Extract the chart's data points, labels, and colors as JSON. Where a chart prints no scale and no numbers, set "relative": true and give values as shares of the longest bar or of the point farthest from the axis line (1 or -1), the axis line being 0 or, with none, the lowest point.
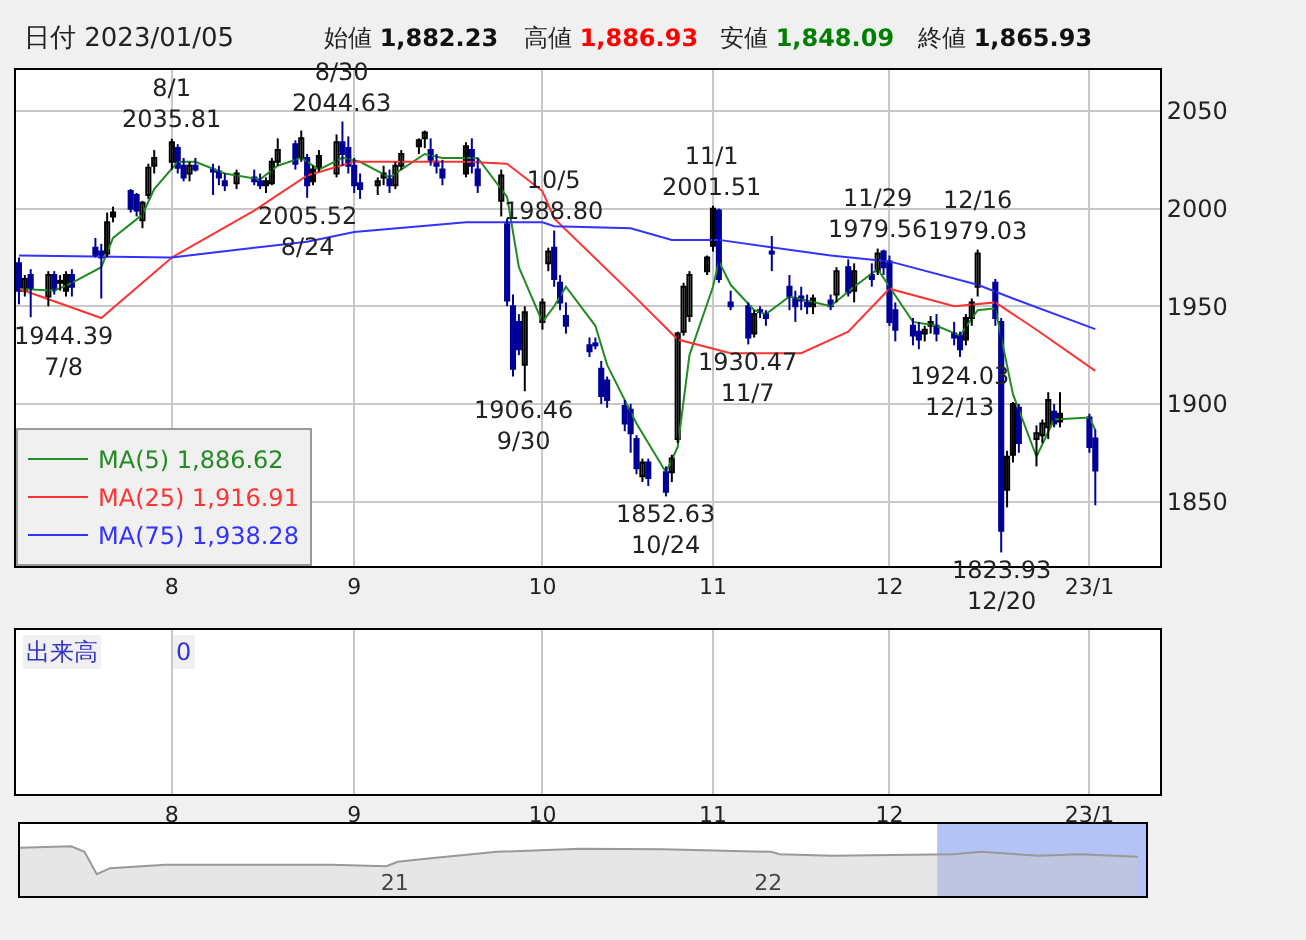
{
  "chart_data": [
    {
      "type": "candlestick",
      "annotations": [
        "日付 2023/01/05",
        "始値 1,882.23",
        "高値 1,886.93",
        "安値 1,848.09",
        "終値 1,865.93",
        "出来高",
        "0",
        {
          "text": "1944.39\n7/8",
          "x": "2022-07-08",
          "y": 1944.39
        },
        {
          "text": "8/1\n2035.81",
          "x": "2022-08-01",
          "y": 2035.81
        },
        {
          "text": "2005.52\n8/24",
          "x": "2022-08-24",
          "y": 2005.52
        },
        {
          "text": "8/30\n2044.63",
          "x": "2022-08-30",
          "y": 2044.63
        },
        {
          "text": "1906.46\n9/30",
          "x": "2022-09-30",
          "y": 1906.46
        },
        {
          "text": "10/5\n1988.80",
          "x": "2022-10-05",
          "y": 1988.8
        },
        {
          "text": "1852.63\n10/24",
          "x": "2022-10-24",
          "y": 1852.63
        },
        {
          "text": "11/1\n2001.51",
          "x": "2022-11-01",
          "y": 2001.51
        },
        {
          "text": "1930.47\n11/7",
          "x": "2022-11-07",
          "y": 1930.47
        },
        {
          "text": "11/29\n1979.56",
          "x": "2022-11-29",
          "y": 1979.56
        },
        {
          "text": "1924.03\n12/13",
          "x": "2022-12-13",
          "y": 1924.03
        },
        {
          "text": "12/16\n1979.03",
          "x": "2022-12-16",
          "y": 1979.03
        },
        {
          "text": "1823.93\n12/20",
          "x": "2022-12-20",
          "y": 1823.93
        }
      ],
      "x": [
        "2022-07-06",
        "2022-07-07",
        "2022-07-08",
        "2022-07-11",
        "2022-07-12",
        "2022-07-13",
        "2022-07-14",
        "2022-07-15",
        "2022-07-19",
        "2022-07-20",
        "2022-07-21",
        "2022-07-22",
        "2022-07-25",
        "2022-07-26",
        "2022-07-27",
        "2022-07-28",
        "2022-07-29",
        "2022-08-01",
        "2022-08-02",
        "2022-08-03",
        "2022-08-04",
        "2022-08-05",
        "2022-08-08",
        "2022-08-09",
        "2022-08-10",
        "2022-08-12",
        "2022-08-15",
        "2022-08-16",
        "2022-08-17",
        "2022-08-18",
        "2022-08-19",
        "2022-08-22",
        "2022-08-23",
        "2022-08-24",
        "2022-08-25",
        "2022-08-26",
        "2022-08-29",
        "2022-08-30",
        "2022-08-31",
        "2022-09-01",
        "2022-09-02",
        "2022-09-05",
        "2022-09-06",
        "2022-09-07",
        "2022-09-08",
        "2022-09-09",
        "2022-09-12",
        "2022-09-13",
        "2022-09-14",
        "2022-09-15",
        "2022-09-16",
        "2022-09-20",
        "2022-09-21",
        "2022-09-22",
        "2022-09-26",
        "2022-09-27",
        "2022-09-28",
        "2022-09-29",
        "2022-09-30",
        "2022-10-03",
        "2022-10-04",
        "2022-10-05",
        "2022-10-06",
        "2022-10-07",
        "2022-10-11",
        "2022-10-12",
        "2022-10-13",
        "2022-10-14",
        "2022-10-17",
        "2022-10-18",
        "2022-10-19",
        "2022-10-20",
        "2022-10-21",
        "2022-10-24",
        "2022-10-25",
        "2022-10-26",
        "2022-10-27",
        "2022-10-28",
        "2022-10-31",
        "2022-11-01",
        "2022-11-02",
        "2022-11-04",
        "2022-11-07",
        "2022-11-08",
        "2022-11-09",
        "2022-11-10",
        "2022-11-11",
        "2022-11-14",
        "2022-11-15",
        "2022-11-16",
        "2022-11-17",
        "2022-11-18",
        "2022-11-21",
        "2022-11-22",
        "2022-11-24",
        "2022-11-25",
        "2022-11-28",
        "2022-11-29",
        "2022-11-30",
        "2022-12-01",
        "2022-12-02",
        "2022-12-05",
        "2022-12-06",
        "2022-12-07",
        "2022-12-08",
        "2022-12-09",
        "2022-12-12",
        "2022-12-13",
        "2022-12-14",
        "2022-12-15",
        "2022-12-16",
        "2022-12-19",
        "2022-12-20",
        "2022-12-21",
        "2022-12-22",
        "2022-12-23",
        "2022-12-26",
        "2022-12-27",
        "2022-12-28",
        "2022-12-29",
        "2022-12-30",
        "2023-01-04",
        "2023-01-05"
      ],
      "ohlc": [
        [
          1972,
          1975,
          1951,
          1958
        ],
        [
          1958,
          1966,
          1955,
          1964
        ],
        [
          1966,
          1969,
          1944.39,
          1959
        ],
        [
          1955,
          1968,
          1950,
          1966
        ],
        [
          1966,
          1968,
          1956,
          1959
        ],
        [
          1962,
          1966,
          1958,
          1963
        ],
        [
          1958,
          1968,
          1955,
          1966
        ],
        [
          1966,
          1969,
          1955,
          1960
        ],
        [
          1980,
          1985,
          1975,
          1976
        ],
        [
          1978,
          1982,
          1954,
          1975
        ],
        [
          1977,
          1998,
          1975,
          1993
        ],
        [
          1996,
          2001,
          1993,
          1998
        ],
        [
          2009,
          2010,
          1998,
          2000
        ],
        [
          2007,
          2008,
          1996,
          1999
        ],
        [
          1994,
          2004,
          1990,
          2003
        ],
        [
          2007,
          2023,
          2005,
          2021
        ],
        [
          2022,
          2030,
          2018,
          2026
        ],
        [
          2024,
          2035.81,
          2020,
          2034
        ],
        [
          2031,
          2033,
          2018,
          2021
        ],
        [
          2022,
          2026,
          2014,
          2016
        ],
        [
          2018,
          2024,
          2014,
          2022
        ],
        [
          2022,
          2026,
          2019,
          2020
        ],
        [
          2020,
          2023,
          2007,
          2019
        ],
        [
          2019,
          2022,
          2012,
          2016
        ],
        [
          2014,
          2018,
          2009,
          2012
        ],
        [
          2013,
          2020,
          2010,
          2018
        ],
        [
          2016,
          2020,
          2012,
          2014
        ],
        [
          2014,
          2018,
          2010,
          2012
        ],
        [
          2012,
          2016,
          2008,
          2014
        ],
        [
          2013,
          2026,
          2012,
          2024
        ],
        [
          2024,
          2036,
          2022,
          2030
        ],
        [
          2033,
          2035,
          2020,
          2023
        ],
        [
          2026,
          2040,
          2024,
          2036
        ],
        [
          2026,
          2028,
          2005.52,
          2012
        ],
        [
          2014,
          2022,
          2012,
          2020
        ],
        [
          2021,
          2030,
          2019,
          2027
        ],
        [
          2018,
          2038,
          2016,
          2034
        ],
        [
          2034,
          2044.63,
          2022,
          2028
        ],
        [
          2031,
          2037,
          2018,
          2022
        ],
        [
          2022,
          2026,
          2008,
          2012
        ],
        [
          2013,
          2018,
          2005,
          2010
        ],
        [
          2012,
          2016,
          2007,
          2014
        ],
        [
          2016,
          2022,
          2012,
          2018
        ],
        [
          2015,
          2020,
          2008,
          2012
        ],
        [
          2012,
          2024,
          2010,
          2022
        ],
        [
          2022,
          2030,
          2020,
          2028
        ],
        [
          2032,
          2036,
          2028,
          2035
        ],
        [
          2036,
          2040,
          2031,
          2039
        ],
        [
          2030,
          2036,
          2022,
          2025
        ],
        [
          2024,
          2028,
          2018,
          2022
        ],
        [
          2020,
          2025,
          2012,
          2016
        ],
        [
          2018,
          2034,
          2016,
          2032
        ],
        [
          2030,
          2036,
          2018,
          2022
        ],
        [
          2020,
          2026,
          2008,
          2012
        ],
        [
          2004,
          2020,
          1996,
          2017
        ],
        [
          1992,
          1995,
          1950,
          1953
        ],
        [
          1950,
          1956,
          1914,
          1918
        ],
        [
          1942,
          1946,
          1925,
          1928
        ],
        [
          1920,
          1950,
          1906.46,
          1947
        ],
        [
          1942,
          1954,
          1938,
          1952
        ],
        [
          1972,
          1980,
          1968,
          1978
        ],
        [
          1980,
          1988.8,
          1960,
          1964
        ],
        [
          1962,
          1966,
          1948,
          1952
        ],
        [
          1945,
          1952,
          1936,
          1940
        ],
        [
          1930,
          1934,
          1924,
          1927
        ],
        [
          1931,
          1934,
          1928,
          1930
        ],
        [
          1918,
          1922,
          1900,
          1904
        ],
        [
          1912,
          1914,
          1898,
          1902
        ],
        [
          1899,
          1902,
          1886,
          1890
        ],
        [
          1897,
          1900,
          1875,
          1885
        ],
        [
          1882,
          1884,
          1864,
          1867
        ],
        [
          1863,
          1872,
          1860,
          1870
        ],
        [
          1870,
          1872,
          1858,
          1862
        ],
        [
          1865,
          1868,
          1852.63,
          1855
        ],
        [
          1865,
          1874,
          1860,
          1872
        ],
        [
          1882,
          1937,
          1880,
          1936
        ],
        [
          1937,
          1962,
          1935,
          1960
        ],
        [
          1945,
          1968,
          1942,
          1966
        ],
        [
          1968,
          1976,
          1966,
          1975
        ],
        [
          1981,
          2001.51,
          1978,
          2000
        ],
        [
          1999,
          2000,
          1962,
          1964
        ],
        [
          1952,
          1958,
          1948,
          1950
        ],
        [
          1950,
          1952,
          1930.47,
          1934
        ],
        [
          1936,
          1948,
          1934,
          1946
        ],
        [
          1948,
          1950,
          1944,
          1947
        ],
        [
          1946,
          1948,
          1940,
          1944
        ],
        [
          1978,
          1986,
          1968,
          1977
        ],
        [
          1960,
          1966,
          1948,
          1955
        ],
        [
          1954,
          1958,
          1942,
          1950
        ],
        [
          1955,
          1960,
          1948,
          1953
        ],
        [
          1952,
          1956,
          1946,
          1950
        ],
        [
          1950,
          1956,
          1946,
          1954
        ],
        [
          1953,
          1956,
          1948,
          1950
        ],
        [
          1956,
          1970,
          1952,
          1968
        ],
        [
          1970,
          1974,
          1955,
          1957
        ],
        [
          1958,
          1972,
          1952,
          1968
        ],
        [
          1966,
          1972,
          1960,
          1964
        ],
        [
          1968,
          1979.56,
          1966,
          1977
        ],
        [
          1978,
          1979,
          1966,
          1970
        ],
        [
          1973,
          1976,
          1940,
          1942
        ],
        [
          1948,
          1952,
          1932,
          1938
        ],
        [
          1940,
          1944,
          1930,
          1935
        ],
        [
          1937,
          1942,
          1928,
          1933
        ],
        [
          1936,
          1940,
          1932,
          1938
        ],
        [
          1940,
          1945,
          1936,
          1942
        ],
        [
          1940,
          1946,
          1932,
          1936
        ],
        [
          1936,
          1942,
          1930,
          1934
        ],
        [
          1935,
          1937,
          1924.03,
          1928
        ],
        [
          1933,
          1946,
          1930,
          1944
        ],
        [
          1944,
          1954,
          1940,
          1952
        ],
        [
          1960,
          1979.03,
          1955,
          1977
        ],
        [
          1962,
          1964,
          1940,
          1944
        ],
        [
          1942,
          1944,
          1823.93,
          1835
        ],
        [
          1856,
          1876,
          1847,
          1873
        ],
        [
          1874,
          1901,
          1870,
          1900
        ],
        [
          1898,
          1900,
          1875,
          1880
        ],
        [
          1882,
          1889,
          1868,
          1885
        ],
        [
          1884,
          1892,
          1880,
          1890
        ],
        [
          1888,
          1906,
          1882,
          1902
        ],
        [
          1896,
          1900,
          1888,
          1890
        ],
        [
          1891,
          1906,
          1888,
          1895
        ],
        [
          1893,
          1895,
          1875,
          1878
        ],
        [
          1882.23,
          1886.93,
          1848.09,
          1865.93
        ]
      ],
      "series": [
        {
          "name": "MA(5) 1,886.62",
          "color": "#228b22",
          "type": "line",
          "x": [
            "2022-07-06",
            "2022-07-12",
            "2022-07-15",
            "2022-07-20",
            "2022-07-22",
            "2022-07-27",
            "2022-07-29",
            "2022-08-02",
            "2022-08-05",
            "2022-08-10",
            "2022-08-16",
            "2022-08-19",
            "2022-08-23",
            "2022-08-26",
            "2022-08-30",
            "2022-09-02",
            "2022-09-07",
            "2022-09-13",
            "2022-09-16",
            "2022-09-22",
            "2022-09-27",
            "2022-09-29",
            "2022-10-03",
            "2022-10-05",
            "2022-10-07",
            "2022-10-12",
            "2022-10-14",
            "2022-10-19",
            "2022-10-24",
            "2022-10-26",
            "2022-10-28",
            "2022-11-01",
            "2022-11-02",
            "2022-11-04",
            "2022-11-08",
            "2022-11-10",
            "2022-11-14",
            "2022-11-17",
            "2022-11-21",
            "2022-11-25",
            "2022-11-29",
            "2022-12-01",
            "2022-12-05",
            "2022-12-09",
            "2022-12-13",
            "2022-12-16",
            "2022-12-19",
            "2022-12-22",
            "2022-12-26",
            "2022-12-29",
            "2023-01-04",
            "2023-01-05"
          ],
          "values": [
            1959,
            1958,
            1962,
            1970,
            1985,
            1997,
            2010,
            2024,
            2024,
            2018,
            2015,
            2022,
            2026,
            2020,
            2026,
            2024,
            2016,
            2028,
            2026,
            2026,
            2006,
            1970,
            1942,
            1950,
            1960,
            1940,
            1920,
            1890,
            1865,
            1878,
            1925,
            1960,
            1973,
            1961,
            1948,
            1946,
            1955,
            1953,
            1950,
            1960,
            1969,
            1960,
            1942,
            1940,
            1935,
            1948,
            1949,
            1905,
            1873,
            1892,
            1893,
            1886.62
          ]
        },
        {
          "name": "MA(25) 1,916.91",
          "color": "#ff3333",
          "type": "line",
          "x": [
            "2022-07-06",
            "2022-07-20",
            "2022-08-01",
            "2022-08-15",
            "2022-08-24",
            "2022-09-01",
            "2022-09-20",
            "2022-09-27",
            "2022-10-03",
            "2022-10-05",
            "2022-10-18",
            "2022-10-26",
            "2022-11-04",
            "2022-11-16",
            "2022-11-24",
            "2022-12-01",
            "2022-12-12",
            "2022-12-19",
            "2022-12-26",
            "2023-01-05"
          ],
          "values": [
            1959,
            1944,
            1975,
            1999,
            2017,
            2024,
            2024,
            2023,
            2009,
            1995,
            1957,
            1933,
            1926,
            1926,
            1937,
            1959,
            1950,
            1952,
            1938,
            1916.91
          ]
        },
        {
          "name": "MA(75) 1,938.28",
          "color": "#3333ff",
          "type": "line",
          "x": [
            "2022-07-06",
            "2022-08-01",
            "2022-08-15",
            "2022-08-24",
            "2022-09-01",
            "2022-09-20",
            "2022-10-03",
            "2022-10-05",
            "2022-10-18",
            "2022-10-25",
            "2022-11-02",
            "2022-11-21",
            "2022-12-01",
            "2022-12-16",
            "2022-12-22",
            "2023-01-05"
          ],
          "values": [
            1976,
            1975,
            1980,
            1983,
            1988,
            1993,
            1993,
            1991,
            1990,
            1984,
            1984,
            1976,
            1973,
            1961,
            1954,
            1938.28
          ]
        }
      ],
      "xlim": [
        "2022-07-05T12:00",
        "2023-01-16"
      ],
      "xticks": [
        {
          "value": "2022-08-01",
          "label": "8"
        },
        {
          "value": "2022-09-01",
          "label": "9"
        },
        {
          "value": "2022-10-03",
          "label": "10"
        },
        {
          "value": "2022-11-01",
          "label": "11"
        },
        {
          "value": "2022-12-01",
          "label": "12"
        },
        {
          "value": "2023-01-04",
          "label": "23/1"
        }
      ],
      "ylim": [
        1817,
        2071
      ],
      "yticks": [
        1850,
        1900,
        1950,
        2000,
        2050
      ],
      "grid": true,
      "legend": "bottom left"
    },
    {
      "type": "area",
      "relative": true,
      "color": "#999999",
      "x": [
        "2020-01-01",
        "2020-02-20",
        "2020-03-04",
        "2020-03-16",
        "2020-03-29",
        "2020-05-22",
        "2020-08-11",
        "2020-10-31",
        "2020-12-24",
        "2021-01-04",
        "2021-02-05",
        "2021-04-11",
        "2021-07-01",
        "2021-09-20",
        "2022-01-04",
        "2022-01-12",
        "2022-03-04",
        "2022-06-30",
        "2022-07-28",
        "2022-09-22",
        "2022-11-01",
        "2022-12-28"
      ],
      "values": [
        0.97,
        1,
        0.89,
        0.44,
        0.56,
        0.63,
        0.63,
        0.63,
        0.6,
        0.69,
        0.76,
        0.89,
        0.95,
        0.94,
        0.89,
        0.84,
        0.81,
        0.84,
        0.89,
        0.81,
        0.84,
        0.79
      ],
      "xlim": [
        "2020-01-01",
        "2023-01-05"
      ],
      "xticks": [
        {
          "value": "2021-01-01",
          "label": "21"
        },
        {
          "value": "2022-01-01",
          "label": "22"
        }
      ],
      "bands": [
        {
          "axis": "x",
          "from": "2022-06-15",
          "to": "2023-01-05",
          "color": "#b4c3f5"
        }
      ]
    }
  ]
}
